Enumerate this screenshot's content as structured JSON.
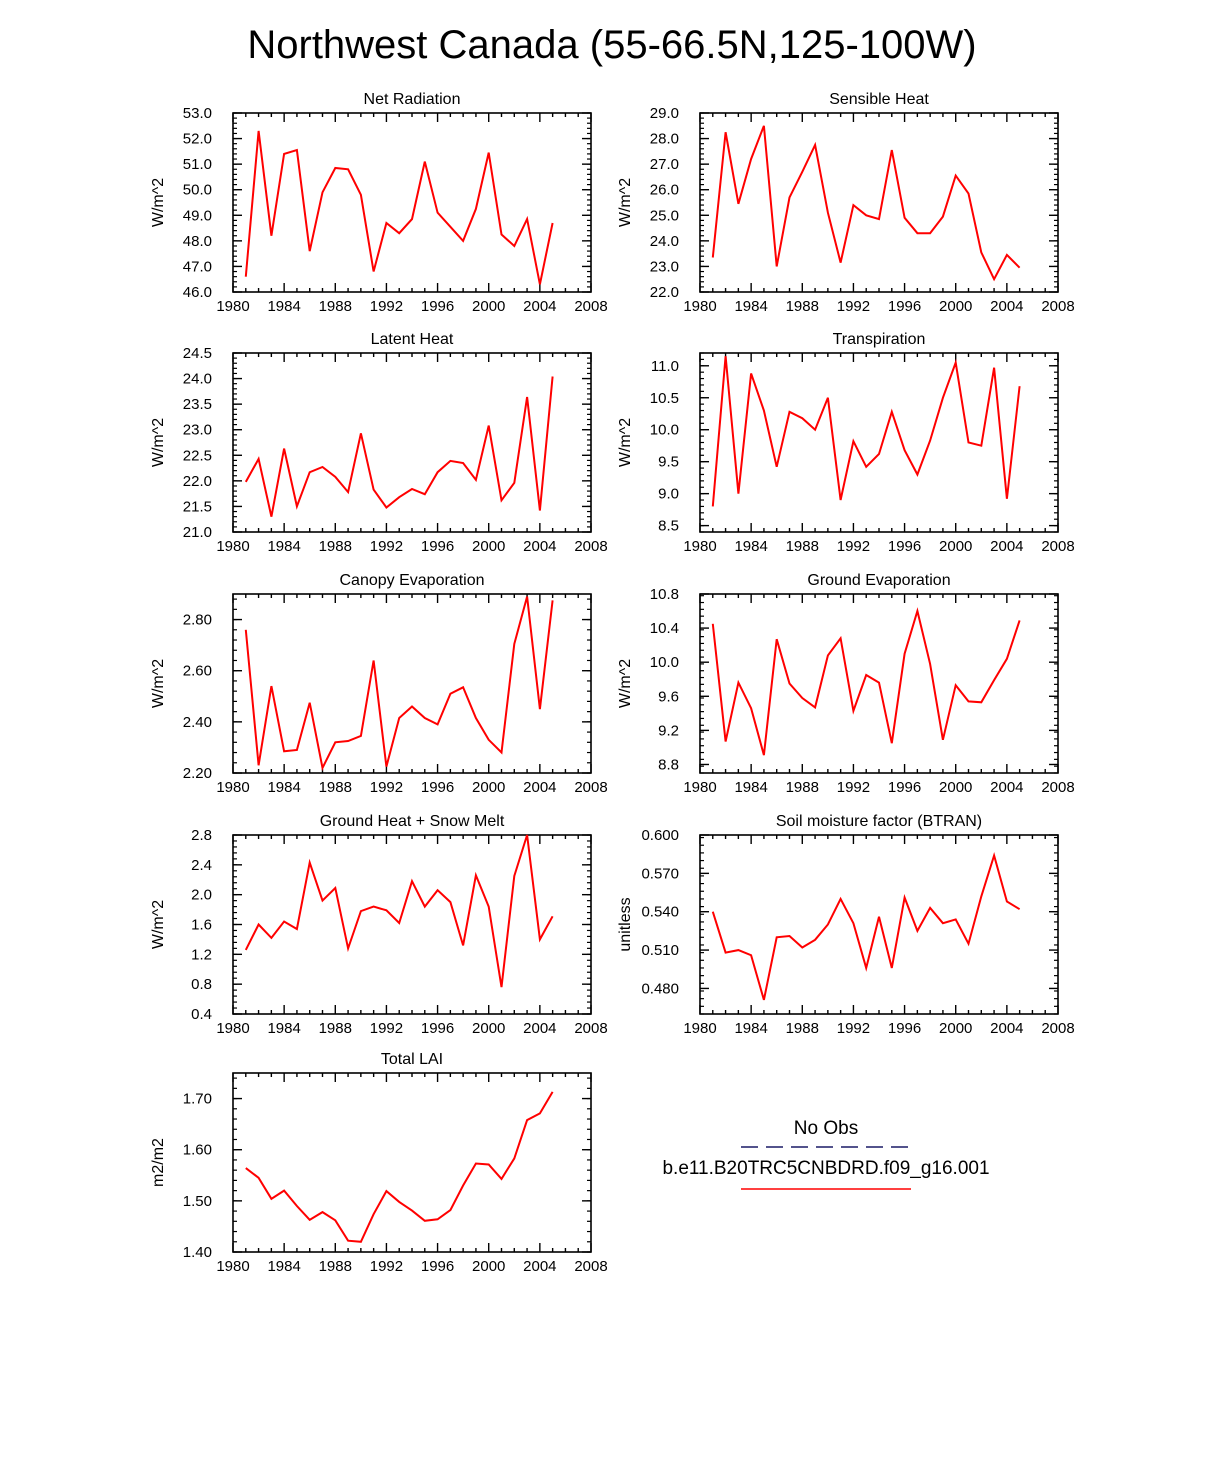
{
  "page": {
    "title": "Northwest Canada (55-66.5N,125-100W)"
  },
  "legend": {
    "entries": [
      {
        "label": "No Obs",
        "style": "dashed",
        "color": "#1a1a66"
      },
      {
        "label": "b.e11.B20TRC5CNBDRD.f09_g16.001",
        "style": "solid",
        "color": "#ff0000"
      }
    ]
  },
  "chart_data": [
    {
      "type": "line",
      "title": "Net Radiation",
      "xlabel": "",
      "ylabel": "W/m^2",
      "xlim": [
        1980,
        2008
      ],
      "ylim": [
        46.0,
        53.0
      ],
      "xticks": [
        "1980",
        "1984",
        "1988",
        "1992",
        "1996",
        "2000",
        "2004",
        "2008"
      ],
      "yticks": [
        46.0,
        47.0,
        48.0,
        49.0,
        50.0,
        51.0,
        52.0,
        53.0
      ],
      "ydecimals": 1,
      "x": [
        1981,
        1982,
        1983,
        1984,
        1985,
        1986,
        1987,
        1988,
        1989,
        1990,
        1991,
        1992,
        1993,
        1994,
        1995,
        1996,
        1997,
        1998,
        1999,
        2000,
        2001,
        2002,
        2003,
        2004,
        2005
      ],
      "series": [
        {
          "name": "b.e11.B20TRC5CNBDRD.f09_g16.001",
          "color": "#ff0000",
          "values": [
            46.6,
            52.3,
            48.2,
            51.4,
            51.55,
            47.6,
            49.9,
            50.85,
            50.8,
            49.8,
            46.8,
            48.7,
            48.3,
            48.85,
            51.1,
            49.1,
            48.55,
            48.0,
            49.25,
            51.45,
            48.25,
            47.8,
            48.85,
            46.3,
            48.7
          ]
        }
      ]
    },
    {
      "type": "line",
      "title": "Sensible Heat",
      "xlabel": "",
      "ylabel": "W/m^2",
      "xlim": [
        1980,
        2008
      ],
      "ylim": [
        22.0,
        29.0
      ],
      "xticks": [
        "1980",
        "1984",
        "1988",
        "1992",
        "1996",
        "2000",
        "2004",
        "2008"
      ],
      "yticks": [
        22.0,
        23.0,
        24.0,
        25.0,
        26.0,
        27.0,
        28.0,
        29.0
      ],
      "ydecimals": 1,
      "x": [
        1981,
        1982,
        1983,
        1984,
        1985,
        1986,
        1987,
        1988,
        1989,
        1990,
        1991,
        1992,
        1993,
        1994,
        1995,
        1996,
        1997,
        1998,
        1999,
        2000,
        2001,
        2002,
        2003,
        2004,
        2005
      ],
      "series": [
        {
          "name": "b.e11.B20TRC5CNBDRD.f09_g16.001",
          "color": "#ff0000",
          "values": [
            23.35,
            28.25,
            25.45,
            27.2,
            28.5,
            23.0,
            25.7,
            26.7,
            27.75,
            25.1,
            23.15,
            25.4,
            25.0,
            24.85,
            27.55,
            24.9,
            24.3,
            24.3,
            24.95,
            26.55,
            25.85,
            23.55,
            22.5,
            23.45,
            22.95
          ]
        }
      ]
    },
    {
      "type": "line",
      "title": "Latent Heat",
      "xlabel": "",
      "ylabel": "W/m^2",
      "xlim": [
        1980,
        2008
      ],
      "ylim": [
        21.0,
        24.5
      ],
      "xticks": [
        "1980",
        "1984",
        "1988",
        "1992",
        "1996",
        "2000",
        "2004",
        "2008"
      ],
      "yticks": [
        21.0,
        21.5,
        22.0,
        22.5,
        23.0,
        23.5,
        24.0,
        24.5
      ],
      "ydecimals": 1,
      "x": [
        1981,
        1982,
        1983,
        1984,
        1985,
        1986,
        1987,
        1988,
        1989,
        1990,
        1991,
        1992,
        1993,
        1994,
        1995,
        1996,
        1997,
        1998,
        1999,
        2000,
        2001,
        2002,
        2003,
        2004,
        2005
      ],
      "series": [
        {
          "name": "b.e11.B20TRC5CNBDRD.f09_g16.001",
          "color": "#ff0000",
          "values": [
            21.98,
            22.43,
            21.3,
            22.63,
            21.5,
            22.17,
            22.27,
            22.08,
            21.78,
            22.93,
            21.83,
            21.48,
            21.68,
            21.84,
            21.74,
            22.17,
            22.39,
            22.35,
            22.02,
            23.08,
            21.62,
            21.96,
            23.64,
            21.42,
            24.04
          ]
        }
      ]
    },
    {
      "type": "line",
      "title": "Transpiration",
      "xlabel": "",
      "ylabel": "W/m^2",
      "xlim": [
        1980,
        2008
      ],
      "ylim": [
        8.4,
        11.2
      ],
      "xticks": [
        "1980",
        "1984",
        "1988",
        "1992",
        "1996",
        "2000",
        "2004",
        "2008"
      ],
      "yticks": [
        8.5,
        9.0,
        9.5,
        10.0,
        10.5,
        11.0
      ],
      "ydecimals": 1,
      "x": [
        1981,
        1982,
        1983,
        1984,
        1985,
        1986,
        1987,
        1988,
        1989,
        1990,
        1991,
        1992,
        1993,
        1994,
        1995,
        1996,
        1997,
        1998,
        1999,
        2000,
        2001,
        2002,
        2003,
        2004,
        2005
      ],
      "series": [
        {
          "name": "b.e11.B20TRC5CNBDRD.f09_g16.001",
          "color": "#ff0000",
          "values": [
            8.8,
            11.15,
            9.0,
            10.88,
            10.3,
            9.42,
            10.28,
            10.18,
            10.0,
            10.5,
            8.9,
            9.82,
            9.42,
            9.62,
            10.28,
            9.68,
            9.3,
            9.83,
            10.5,
            11.05,
            9.8,
            9.75,
            10.97,
            8.92,
            10.68
          ]
        }
      ]
    },
    {
      "type": "line",
      "title": "Canopy Evaporation",
      "xlabel": "",
      "ylabel": "W/m^2",
      "xlim": [
        1980,
        2008
      ],
      "ylim": [
        2.2,
        2.9
      ],
      "xticks": [
        "1980",
        "1984",
        "1988",
        "1992",
        "1996",
        "2000",
        "2004",
        "2008"
      ],
      "yticks": [
        2.2,
        2.4,
        2.6,
        2.8
      ],
      "ydecimals": 2,
      "x": [
        1981,
        1982,
        1983,
        1984,
        1985,
        1986,
        1987,
        1988,
        1989,
        1990,
        1991,
        1992,
        1993,
        1994,
        1995,
        1996,
        1997,
        1998,
        1999,
        2000,
        2001,
        2002,
        2003,
        2004,
        2005
      ],
      "series": [
        {
          "name": "b.e11.B20TRC5CNBDRD.f09_g16.001",
          "color": "#ff0000",
          "values": [
            2.76,
            2.23,
            2.54,
            2.285,
            2.29,
            2.475,
            2.22,
            2.32,
            2.325,
            2.345,
            2.64,
            2.225,
            2.415,
            2.46,
            2.415,
            2.39,
            2.51,
            2.535,
            2.415,
            2.33,
            2.28,
            2.705,
            2.89,
            2.45,
            2.875
          ]
        }
      ]
    },
    {
      "type": "line",
      "title": "Ground Evaporation",
      "xlabel": "",
      "ylabel": "W/m^2",
      "xlim": [
        1980,
        2008
      ],
      "ylim": [
        8.7,
        10.8
      ],
      "xticks": [
        "1980",
        "1984",
        "1988",
        "1992",
        "1996",
        "2000",
        "2004",
        "2008"
      ],
      "yticks": [
        8.8,
        9.2,
        9.6,
        10.0,
        10.4,
        10.8
      ],
      "ydecimals": 1,
      "x": [
        1981,
        1982,
        1983,
        1984,
        1985,
        1986,
        1987,
        1988,
        1989,
        1990,
        1991,
        1992,
        1993,
        1994,
        1995,
        1996,
        1997,
        1998,
        1999,
        2000,
        2001,
        2002,
        2003,
        2004,
        2005
      ],
      "series": [
        {
          "name": "b.e11.B20TRC5CNBDRD.f09_g16.001",
          "color": "#ff0000",
          "values": [
            10.45,
            9.07,
            9.76,
            9.46,
            8.91,
            10.27,
            9.75,
            9.58,
            9.47,
            10.08,
            10.28,
            9.43,
            9.85,
            9.76,
            9.05,
            10.1,
            10.6,
            9.98,
            9.09,
            9.73,
            9.54,
            9.53,
            9.79,
            10.04,
            10.49
          ]
        }
      ]
    },
    {
      "type": "line",
      "title": "Ground Heat + Snow Melt",
      "xlabel": "",
      "ylabel": "W/m^2",
      "xlim": [
        1980,
        2008
      ],
      "ylim": [
        0.4,
        2.8
      ],
      "xticks": [
        "1980",
        "1984",
        "1988",
        "1992",
        "1996",
        "2000",
        "2004",
        "2008"
      ],
      "yticks": [
        0.4,
        0.8,
        1.2,
        1.6,
        2.0,
        2.4,
        2.8
      ],
      "ydecimals": 1,
      "x": [
        1981,
        1982,
        1983,
        1984,
        1985,
        1986,
        1987,
        1988,
        1989,
        1990,
        1991,
        1992,
        1993,
        1994,
        1995,
        1996,
        1997,
        1998,
        1999,
        2000,
        2001,
        2002,
        2003,
        2004,
        2005
      ],
      "series": [
        {
          "name": "b.e11.B20TRC5CNBDRD.f09_g16.001",
          "color": "#ff0000",
          "values": [
            1.26,
            1.6,
            1.42,
            1.64,
            1.54,
            2.43,
            1.92,
            2.09,
            1.28,
            1.78,
            1.84,
            1.79,
            1.62,
            2.18,
            1.84,
            2.06,
            1.9,
            1.32,
            2.26,
            1.84,
            0.76,
            2.25,
            2.8,
            1.4,
            1.71
          ]
        }
      ]
    },
    {
      "type": "line",
      "title": "Soil moisture factor (BTRAN)",
      "xlabel": "",
      "ylabel": "unitless",
      "xlim": [
        1980,
        2008
      ],
      "ylim": [
        0.46,
        0.6
      ],
      "xticks": [
        "1980",
        "1984",
        "1988",
        "1992",
        "1996",
        "2000",
        "2004",
        "2008"
      ],
      "yticks": [
        0.48,
        0.51,
        0.54,
        0.57,
        0.6
      ],
      "ydecimals": 3,
      "x": [
        1981,
        1982,
        1983,
        1984,
        1985,
        1986,
        1987,
        1988,
        1989,
        1990,
        1991,
        1992,
        1993,
        1994,
        1995,
        1996,
        1997,
        1998,
        1999,
        2000,
        2001,
        2002,
        2003,
        2004,
        2005
      ],
      "series": [
        {
          "name": "b.e11.B20TRC5CNBDRD.f09_g16.001",
          "color": "#ff0000",
          "values": [
            0.54,
            0.508,
            0.51,
            0.506,
            0.471,
            0.52,
            0.521,
            0.512,
            0.518,
            0.53,
            0.55,
            0.531,
            0.496,
            0.536,
            0.496,
            0.551,
            0.525,
            0.543,
            0.531,
            0.534,
            0.515,
            0.552,
            0.584,
            0.548,
            0.542
          ]
        }
      ]
    },
    {
      "type": "line",
      "title": "Total LAI",
      "xlabel": "",
      "ylabel": "m2/m2",
      "xlim": [
        1980,
        2008
      ],
      "ylim": [
        1.4,
        1.75
      ],
      "xticks": [
        "1980",
        "1984",
        "1988",
        "1992",
        "1996",
        "2000",
        "2004",
        "2008"
      ],
      "yticks": [
        1.4,
        1.5,
        1.6,
        1.7
      ],
      "ydecimals": 2,
      "x": [
        1981,
        1982,
        1983,
        1984,
        1985,
        1986,
        1987,
        1988,
        1989,
        1990,
        1991,
        1992,
        1993,
        1994,
        1995,
        1996,
        1997,
        1998,
        1999,
        2000,
        2001,
        2002,
        2003,
        2004,
        2005
      ],
      "series": [
        {
          "name": "b.e11.B20TRC5CNBDRD.f09_g16.001",
          "color": "#ff0000",
          "values": [
            1.564,
            1.545,
            1.504,
            1.52,
            1.49,
            1.463,
            1.478,
            1.462,
            1.422,
            1.42,
            1.474,
            1.519,
            1.498,
            1.481,
            1.461,
            1.464,
            1.482,
            1.53,
            1.573,
            1.571,
            1.543,
            1.583,
            1.658,
            1.671,
            1.713
          ]
        }
      ]
    }
  ]
}
